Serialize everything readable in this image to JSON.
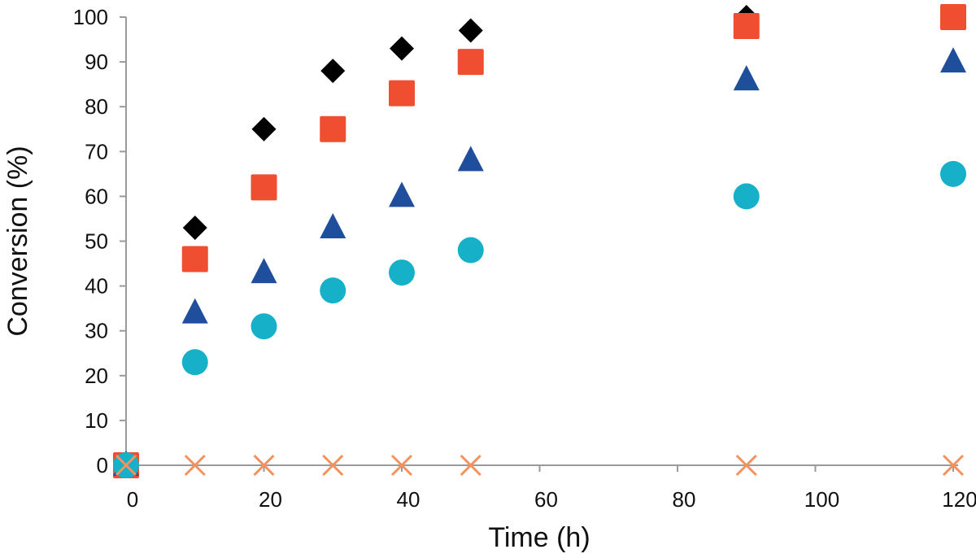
{
  "chart_data": {
    "type": "scatter",
    "title": "",
    "xlabel": "Time (h)",
    "ylabel": "Conversion (%)",
    "xlim": [
      0,
      120
    ],
    "ylim": [
      0,
      100
    ],
    "xticks": [
      0,
      20,
      40,
      60,
      80,
      100,
      120
    ],
    "yticks": [
      0,
      10,
      20,
      30,
      40,
      50,
      60,
      70,
      80,
      90,
      100
    ],
    "grid": false,
    "legend": "none",
    "series": [
      {
        "marker": "diamond",
        "color": "#000000",
        "points": [
          [
            0,
            0
          ],
          [
            10,
            53
          ],
          [
            20,
            75
          ],
          [
            30,
            88
          ],
          [
            40,
            93
          ],
          [
            50,
            97
          ],
          [
            90,
            100
          ],
          [
            120,
            100
          ]
        ]
      },
      {
        "marker": "square",
        "color": "#f04e30",
        "points": [
          [
            0,
            0
          ],
          [
            10,
            46
          ],
          [
            20,
            62
          ],
          [
            30,
            75
          ],
          [
            40,
            83
          ],
          [
            50,
            90
          ],
          [
            90,
            98
          ],
          [
            120,
            100
          ]
        ]
      },
      {
        "marker": "triangle",
        "color": "#1f4e9c",
        "points": [
          [
            0,
            0
          ],
          [
            10,
            34
          ],
          [
            20,
            43
          ],
          [
            30,
            53
          ],
          [
            40,
            60
          ],
          [
            50,
            68
          ],
          [
            90,
            86
          ],
          [
            120,
            90
          ]
        ]
      },
      {
        "marker": "circle",
        "color": "#16b1c8",
        "points": [
          [
            0,
            0
          ],
          [
            10,
            23
          ],
          [
            20,
            31
          ],
          [
            30,
            39
          ],
          [
            40,
            43
          ],
          [
            50,
            48
          ],
          [
            90,
            60
          ],
          [
            120,
            65
          ]
        ]
      },
      {
        "marker": "x",
        "color": "#f5915c",
        "points": [
          [
            0,
            0
          ],
          [
            10,
            0
          ],
          [
            20,
            0
          ],
          [
            30,
            0
          ],
          [
            40,
            0
          ],
          [
            50,
            0
          ],
          [
            90,
            0
          ],
          [
            120,
            0
          ]
        ]
      }
    ]
  }
}
